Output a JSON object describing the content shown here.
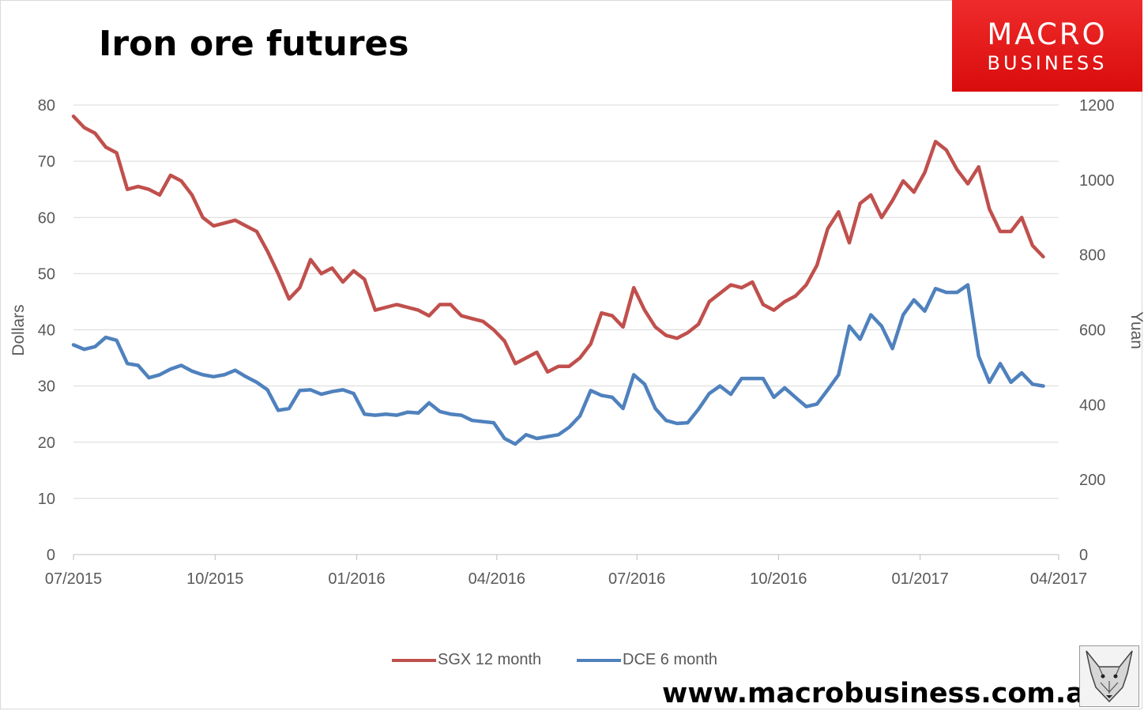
{
  "chart_data": {
    "type": "line",
    "title": "Iron ore futures",
    "x_axis": {
      "tick_labels": [
        "07/2015",
        "10/2015",
        "01/2016",
        "04/2016",
        "07/2016",
        "10/2016",
        "01/2017",
        "04/2017"
      ],
      "range": [
        "07/2015",
        "04/2017"
      ]
    },
    "y_left": {
      "label": "Dollars",
      "ylim": [
        0,
        80
      ],
      "ticks": [
        0,
        10,
        20,
        30,
        40,
        50,
        60,
        70,
        80
      ]
    },
    "y_right": {
      "label": "Yuan",
      "ylim": [
        0,
        1200
      ],
      "ticks": [
        0,
        200,
        400,
        600,
        800,
        1000,
        1200
      ]
    },
    "grid": "horizontal",
    "legend_position": "bottom",
    "series": [
      {
        "name": "SGX 12 month",
        "axis": "left",
        "color": "#c0504d",
        "x": [
          "2015-07-01",
          "2015-07-08",
          "2015-07-15",
          "2015-07-22",
          "2015-07-29",
          "2015-08-05",
          "2015-08-12",
          "2015-08-19",
          "2015-08-26",
          "2015-09-02",
          "2015-09-09",
          "2015-09-16",
          "2015-09-23",
          "2015-09-30",
          "2015-10-07",
          "2015-10-14",
          "2015-10-21",
          "2015-10-28",
          "2015-11-04",
          "2015-11-11",
          "2015-11-18",
          "2015-11-25",
          "2015-12-02",
          "2015-12-09",
          "2015-12-16",
          "2015-12-23",
          "2015-12-30",
          "2016-01-06",
          "2016-01-13",
          "2016-01-20",
          "2016-01-27",
          "2016-02-03",
          "2016-02-10",
          "2016-02-17",
          "2016-02-24",
          "2016-03-02",
          "2016-03-09",
          "2016-03-16",
          "2016-03-23",
          "2016-03-30",
          "2016-04-06",
          "2016-04-13",
          "2016-04-20",
          "2016-04-27",
          "2016-05-04",
          "2016-05-11",
          "2016-05-18",
          "2016-05-25",
          "2016-06-01",
          "2016-06-08",
          "2016-06-15",
          "2016-06-22",
          "2016-06-29",
          "2016-07-06",
          "2016-07-13",
          "2016-07-20",
          "2016-07-27",
          "2016-08-03",
          "2016-08-10",
          "2016-08-17",
          "2016-08-24",
          "2016-08-31",
          "2016-09-07",
          "2016-09-14",
          "2016-09-21",
          "2016-09-28",
          "2016-10-05",
          "2016-10-12",
          "2016-10-19",
          "2016-10-26",
          "2016-11-02",
          "2016-11-09",
          "2016-11-16",
          "2016-11-23",
          "2016-11-30",
          "2016-12-07",
          "2016-12-14",
          "2016-12-21",
          "2016-12-28",
          "2017-01-04",
          "2017-01-11",
          "2017-01-18",
          "2017-01-25",
          "2017-02-01",
          "2017-02-08",
          "2017-02-15",
          "2017-02-22",
          "2017-03-01",
          "2017-03-08",
          "2017-03-15",
          "2017-03-22"
        ],
        "values": [
          78,
          76,
          75,
          72.5,
          71.5,
          65,
          65.5,
          65,
          64,
          67.5,
          66.5,
          64,
          60,
          58.5,
          59,
          59.5,
          58.5,
          57.5,
          54,
          50,
          45.5,
          47.5,
          52.5,
          50,
          51,
          48.5,
          50.5,
          49,
          43.5,
          44,
          44.5,
          44,
          43.5,
          42.5,
          44.5,
          44.5,
          42.5,
          42,
          41.5,
          40,
          38,
          34,
          35,
          36,
          32.5,
          33.5,
          33.5,
          35,
          37.5,
          43,
          42.5,
          40.5,
          47.5,
          43.5,
          40.5,
          39,
          38.5,
          39.5,
          41,
          45,
          46.5,
          48,
          47.5,
          48.5,
          44.5,
          43.5,
          45,
          46,
          48,
          51.5,
          58,
          61,
          55.5,
          62.5,
          64,
          60,
          63,
          66.5,
          64.5,
          68,
          73.5,
          72,
          68.5,
          66,
          69,
          61.5,
          57.5,
          57.5,
          60,
          55,
          53
        ]
      },
      {
        "name": "DCE 6 month",
        "axis": "right",
        "color": "#4f81bd",
        "x": [
          "2015-07-01",
          "2015-07-08",
          "2015-07-15",
          "2015-07-22",
          "2015-07-29",
          "2015-08-05",
          "2015-08-12",
          "2015-08-19",
          "2015-08-26",
          "2015-09-02",
          "2015-09-09",
          "2015-09-16",
          "2015-09-23",
          "2015-09-30",
          "2015-10-07",
          "2015-10-14",
          "2015-10-21",
          "2015-10-28",
          "2015-11-04",
          "2015-11-11",
          "2015-11-18",
          "2015-11-25",
          "2015-12-02",
          "2015-12-09",
          "2015-12-16",
          "2015-12-23",
          "2015-12-30",
          "2016-01-06",
          "2016-01-13",
          "2016-01-20",
          "2016-01-27",
          "2016-02-03",
          "2016-02-10",
          "2016-02-17",
          "2016-02-24",
          "2016-03-02",
          "2016-03-09",
          "2016-03-16",
          "2016-03-23",
          "2016-03-30",
          "2016-04-06",
          "2016-04-13",
          "2016-04-20",
          "2016-04-27",
          "2016-05-04",
          "2016-05-11",
          "2016-05-18",
          "2016-05-25",
          "2016-06-01",
          "2016-06-08",
          "2016-06-15",
          "2016-06-22",
          "2016-06-29",
          "2016-07-06",
          "2016-07-13",
          "2016-07-20",
          "2016-07-27",
          "2016-08-03",
          "2016-08-10",
          "2016-08-17",
          "2016-08-24",
          "2016-08-31",
          "2016-09-07",
          "2016-09-14",
          "2016-09-21",
          "2016-09-28",
          "2016-10-05",
          "2016-10-12",
          "2016-10-19",
          "2016-10-26",
          "2016-11-02",
          "2016-11-09",
          "2016-11-16",
          "2016-11-23",
          "2016-11-30",
          "2016-12-07",
          "2016-12-14",
          "2016-12-21",
          "2016-12-28",
          "2017-01-04",
          "2017-01-11",
          "2017-01-18",
          "2017-01-25",
          "2017-02-01",
          "2017-02-08",
          "2017-02-15",
          "2017-02-22",
          "2017-03-01",
          "2017-03-08",
          "2017-03-15",
          "2017-03-22"
        ],
        "values": [
          560,
          548,
          555,
          580,
          572,
          510,
          505,
          472,
          480,
          495,
          505,
          490,
          480,
          475,
          480,
          492,
          475,
          460,
          440,
          385,
          390,
          438,
          440,
          428,
          435,
          440,
          430,
          375,
          372,
          375,
          372,
          380,
          378,
          405,
          382,
          375,
          372,
          358,
          355,
          352,
          310,
          295,
          320,
          310,
          315,
          320,
          340,
          370,
          438,
          425,
          420,
          390,
          480,
          455,
          390,
          358,
          350,
          352,
          388,
          430,
          450,
          428,
          470,
          470,
          470,
          420,
          445,
          420,
          395,
          402,
          440,
          480,
          610,
          575,
          640,
          610,
          550,
          640,
          680,
          650,
          710,
          700,
          700,
          720,
          530,
          460,
          510,
          460,
          485,
          455,
          450
        ]
      }
    ]
  },
  "legend": {
    "items": [
      {
        "label": "SGX 12 month",
        "color": "#c0504d"
      },
      {
        "label": "DCE 6 month",
        "color": "#4f81bd"
      }
    ]
  },
  "branding": {
    "logo_line1": "MACRO",
    "logo_line2": "BUSINESS",
    "logo_color": "#e21b1b",
    "website": "www.macrobusiness.com.au",
    "mascot_icon": "fox-sketch-icon"
  }
}
